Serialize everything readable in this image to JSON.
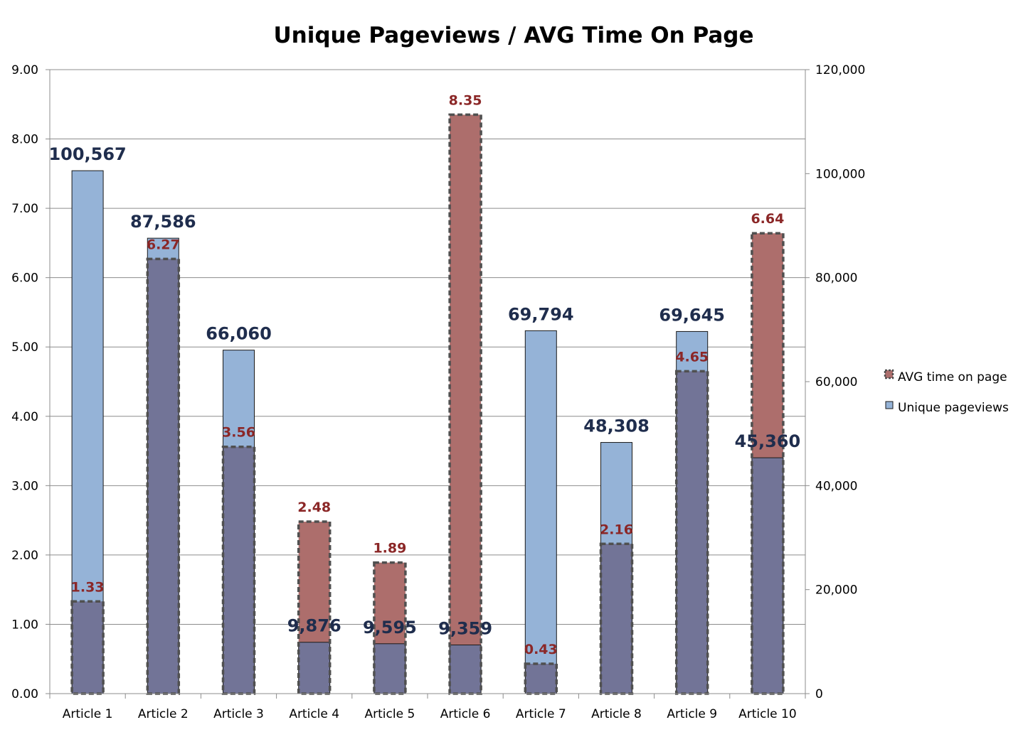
{
  "chart_data": {
    "type": "bar",
    "title": "Unique Pageviews / AVG Time On Page",
    "categories": [
      "Article 1",
      "Article 2",
      "Article 3",
      "Article 4",
      "Article 5",
      "Article 6",
      "Article 7",
      "Article 8",
      "Article 9",
      "Article 10"
    ],
    "series": [
      {
        "name": "AVG time on page",
        "axis": "left",
        "values": [
          1.33,
          6.27,
          3.56,
          2.48,
          1.89,
          8.35,
          0.43,
          2.16,
          4.65,
          6.64
        ],
        "labels": [
          "1.33",
          "6.27",
          "3.56",
          "2.48",
          "1.89",
          "8.35",
          "0.43",
          "2.16",
          "4.65",
          "6.64"
        ],
        "color": "#ad6e6c",
        "border": "dashed"
      },
      {
        "name": "Unique pageviews",
        "axis": "right",
        "values": [
          100567,
          87586,
          66060,
          9876,
          9595,
          9359,
          69794,
          48308,
          69645,
          45360
        ],
        "labels": [
          "100,567",
          "87,586",
          "66,060",
          "9,876",
          "9,595",
          "9,359",
          "69,794",
          "48,308",
          "69,645",
          "45,360"
        ],
        "color": "#95b3d7"
      }
    ],
    "overlap_color": "#727497",
    "y_left": {
      "range": [
        0,
        9
      ],
      "ticks": [
        0,
        1,
        2,
        3,
        4,
        5,
        6,
        7,
        8,
        9
      ],
      "tick_labels": [
        "0.00",
        "1.00",
        "2.00",
        "3.00",
        "4.00",
        "5.00",
        "6.00",
        "7.00",
        "8.00",
        "9.00"
      ]
    },
    "y_right": {
      "range": [
        0,
        120000
      ],
      "ticks": [
        0,
        20000,
        40000,
        60000,
        80000,
        100000,
        120000
      ],
      "tick_labels": [
        "0",
        "20,000",
        "40,000",
        "60,000",
        "80,000",
        "100,000",
        "120,000"
      ]
    },
    "grid": true,
    "legend": {
      "position": "right",
      "entries": [
        "AVG time on page",
        "Unique pageviews"
      ]
    }
  }
}
